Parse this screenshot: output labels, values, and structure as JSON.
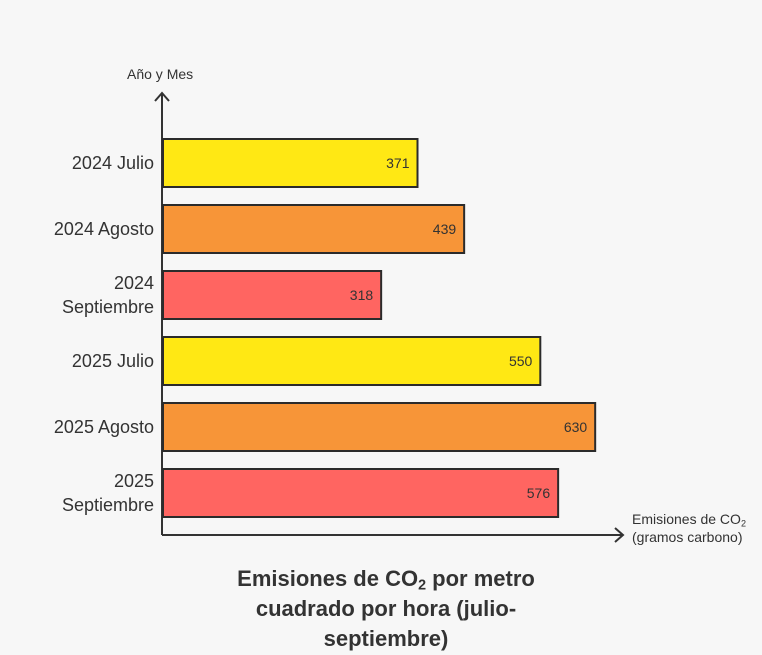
{
  "chart_data": {
    "type": "bar",
    "orientation": "horizontal",
    "title_parts": [
      "Emisiones de CO",
      "2",
      " por metro cuadrado por hora (julio-septiembre)"
    ],
    "ylabel": "Año y Mes",
    "xlabel_parts": [
      "Emisiones de CO",
      "2",
      " (gramos carbono)"
    ],
    "categories": [
      {
        "line1": "2024 Julio",
        "line2": ""
      },
      {
        "line1": "2024 Agosto",
        "line2": ""
      },
      {
        "line1": "2024",
        "line2": "Septiembre"
      },
      {
        "line1": "2025 Julio",
        "line2": ""
      },
      {
        "line1": "2025 Agosto",
        "line2": ""
      },
      {
        "line1": "2025",
        "line2": "Septiembre"
      }
    ],
    "values": [
      371,
      439,
      318,
      550,
      630,
      576
    ],
    "colors": [
      "#ffe814",
      "#f79538",
      "#ff6561",
      "#ffe814",
      "#f79538",
      "#ff6561"
    ],
    "xlim": [
      0,
      680
    ],
    "grid": false,
    "legend": "none"
  }
}
